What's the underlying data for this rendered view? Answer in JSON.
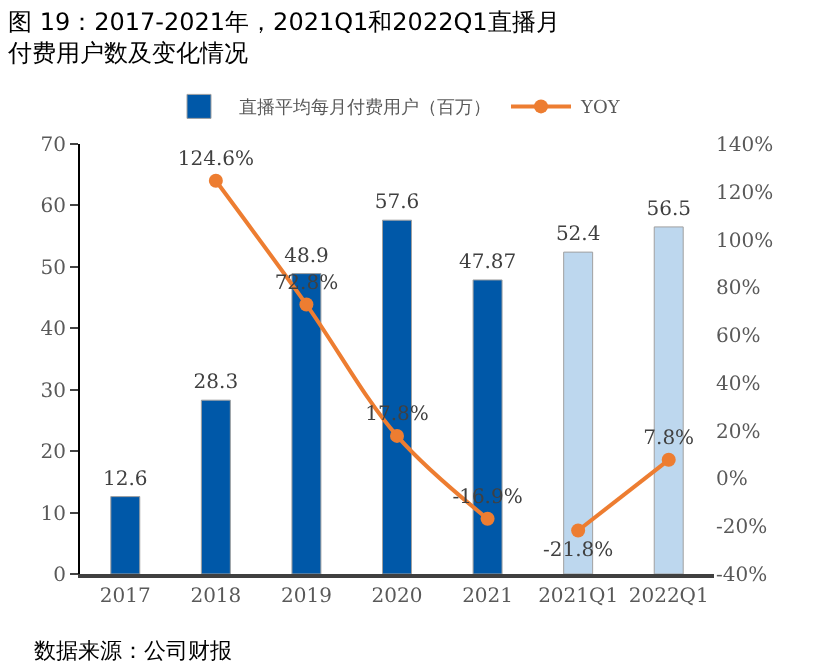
{
  "chart_data": {
    "type": "bar",
    "title": "图 19：2017-2021年，2021Q1和2022Q1直播月付费用户数及变化情况",
    "categories": [
      "2017",
      "2018",
      "2019",
      "2020",
      "2021",
      "2021Q1",
      "2022Q1"
    ],
    "series": [
      {
        "name": "直播平均每月付费用户（百万）",
        "color": "#0058a8",
        "colors": [
          "#0058a8",
          "#0058a8",
          "#0058a8",
          "#0058a8",
          "#0058a8",
          "#bdd7ee",
          "#bdd7ee"
        ],
        "values": [
          12.6,
          28.3,
          48.9,
          57.6,
          47.87,
          52.4,
          56.5
        ],
        "value_labels": [
          "12.6",
          "28.3",
          "48.9",
          "57.6",
          "47.87",
          "52.4",
          "56.5"
        ]
      },
      {
        "name": "YOY",
        "type": "line",
        "axis": "y2",
        "color": "#ed7d31",
        "values": [
          null,
          124.6,
          72.8,
          17.8,
          -16.9,
          null,
          null
        ],
        "value_labels": [
          null,
          "124.6%",
          "72.8%",
          "17.8%",
          "-16.9%",
          null,
          null
        ]
      },
      {
        "type": "line",
        "axis": "y2",
        "color": "#ed7d31",
        "values": [
          null,
          null,
          null,
          null,
          null,
          -21.8,
          7.8
        ],
        "value_labels": [
          null,
          null,
          null,
          null,
          null,
          "-21.8%",
          "7.8%"
        ]
      }
    ],
    "ylim": [
      0,
      70
    ],
    "yticks": [
      0,
      10,
      20,
      30,
      40,
      50,
      60,
      70
    ],
    "y2lim": [
      -40,
      140
    ],
    "y2ticks": [
      {
        "value": -40,
        "label": "-40%"
      },
      {
        "value": -20,
        "label": "-20%"
      },
      {
        "value": 0,
        "label": "0%"
      },
      {
        "value": 20,
        "label": "20%"
      },
      {
        "value": 40,
        "label": "40%"
      },
      {
        "value": 60,
        "label": "60%"
      },
      {
        "value": 80,
        "label": "80%"
      },
      {
        "value": 100,
        "label": "100%"
      },
      {
        "value": 120,
        "label": "120%"
      },
      {
        "value": 140,
        "label": "140%"
      }
    ],
    "legend": "top",
    "marker": "circle",
    "annotations": [
      "数据来源：公司财报"
    ]
  }
}
